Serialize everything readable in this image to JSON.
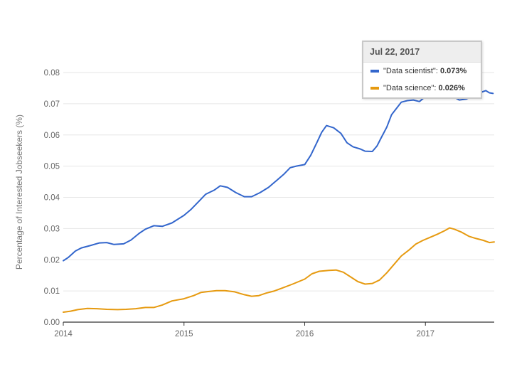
{
  "chart_data": {
    "type": "line",
    "title": "",
    "xlabel": "",
    "ylabel": "Percentage of Interested Jobseekers (%)",
    "ylim": [
      0,
      0.08
    ],
    "y_ticks": [
      "0.00",
      "0.01",
      "0.02",
      "0.03",
      "0.04",
      "0.05",
      "0.06",
      "0.07",
      "0.08"
    ],
    "xlim": [
      2014.0,
      2017.57
    ],
    "x_ticks": [
      "2014",
      "2015",
      "2016",
      "2017"
    ],
    "grid": true,
    "series": [
      {
        "name": "\"Data scientist\"",
        "color": "#3366cc",
        "x": [
          2014.0,
          2014.04,
          2014.1,
          2014.15,
          2014.22,
          2014.3,
          2014.36,
          2014.42,
          2014.5,
          2014.56,
          2014.63,
          2014.68,
          2014.75,
          2014.82,
          2014.9,
          2015.0,
          2015.06,
          2015.13,
          2015.18,
          2015.25,
          2015.3,
          2015.36,
          2015.43,
          2015.5,
          2015.56,
          2015.63,
          2015.7,
          2015.77,
          2015.83,
          2015.88,
          2015.93,
          2016.0,
          2016.05,
          2016.1,
          2016.14,
          2016.18,
          2016.24,
          2016.3,
          2016.35,
          2016.4,
          2016.46,
          2016.5,
          2016.56,
          2016.6,
          2016.63,
          2016.68,
          2016.72,
          2016.76,
          2016.8,
          2016.85,
          2016.9,
          2016.95,
          2017.0,
          2017.04,
          2017.09,
          2017.14,
          2017.18,
          2017.22,
          2017.28,
          2017.34,
          2017.4,
          2017.45,
          2017.5,
          2017.53,
          2017.56
        ],
        "values": [
          0.0197,
          0.0207,
          0.0228,
          0.0238,
          0.0245,
          0.0254,
          0.0255,
          0.0249,
          0.0251,
          0.0263,
          0.0285,
          0.0298,
          0.0309,
          0.0307,
          0.0318,
          0.0342,
          0.0362,
          0.039,
          0.041,
          0.0423,
          0.0437,
          0.0432,
          0.0415,
          0.0402,
          0.0402,
          0.0415,
          0.0432,
          0.0455,
          0.0475,
          0.0495,
          0.05,
          0.0505,
          0.0535,
          0.0575,
          0.0608,
          0.063,
          0.0623,
          0.0605,
          0.0575,
          0.0562,
          0.0555,
          0.0548,
          0.0547,
          0.0565,
          0.0588,
          0.0625,
          0.0665,
          0.0685,
          0.0705,
          0.071,
          0.0712,
          0.0707,
          0.0723,
          0.0738,
          0.0752,
          0.0762,
          0.075,
          0.0725,
          0.0712,
          0.0715,
          0.0728,
          0.0735,
          0.0742,
          0.0735,
          0.0733
        ]
      },
      {
        "name": "\"Data science\"",
        "color": "#e69a10",
        "x": [
          2014.0,
          2014.06,
          2014.12,
          2014.2,
          2014.28,
          2014.36,
          2014.45,
          2014.52,
          2014.6,
          2014.68,
          2014.75,
          2014.82,
          2014.9,
          2015.0,
          2015.08,
          2015.14,
          2015.2,
          2015.27,
          2015.34,
          2015.42,
          2015.5,
          2015.56,
          2015.62,
          2015.68,
          2015.75,
          2015.82,
          2015.9,
          2016.0,
          2016.06,
          2016.12,
          2016.2,
          2016.26,
          2016.32,
          2016.38,
          2016.44,
          2016.5,
          2016.56,
          2016.62,
          2016.68,
          2016.74,
          2016.8,
          2016.86,
          2016.92,
          2016.98,
          2017.04,
          2017.1,
          2017.16,
          2017.2,
          2017.24,
          2017.3,
          2017.36,
          2017.42,
          2017.48,
          2017.53,
          2017.57
        ],
        "values": [
          0.0032,
          0.0035,
          0.004,
          0.0044,
          0.0043,
          0.0041,
          0.004,
          0.0041,
          0.0043,
          0.0047,
          0.0047,
          0.0055,
          0.0068,
          0.0075,
          0.0085,
          0.0095,
          0.0098,
          0.0101,
          0.0101,
          0.0097,
          0.0088,
          0.0083,
          0.0085,
          0.0093,
          0.01,
          0.011,
          0.0122,
          0.0138,
          0.0155,
          0.0163,
          0.0166,
          0.0167,
          0.016,
          0.0145,
          0.013,
          0.0122,
          0.0124,
          0.0135,
          0.0158,
          0.0185,
          0.0212,
          0.023,
          0.025,
          0.0262,
          0.0272,
          0.0282,
          0.0293,
          0.0302,
          0.0298,
          0.0288,
          0.0275,
          0.0268,
          0.0262,
          0.0255,
          0.0257
        ]
      }
    ]
  },
  "tooltip": {
    "date": "Jul 22, 2017",
    "rows": [
      {
        "label": "\"Data scientist\":",
        "value": "0.073%",
        "color": "#3366cc"
      },
      {
        "label": "\"Data science\":",
        "value": "0.026%",
        "color": "#e69a10"
      }
    ]
  }
}
